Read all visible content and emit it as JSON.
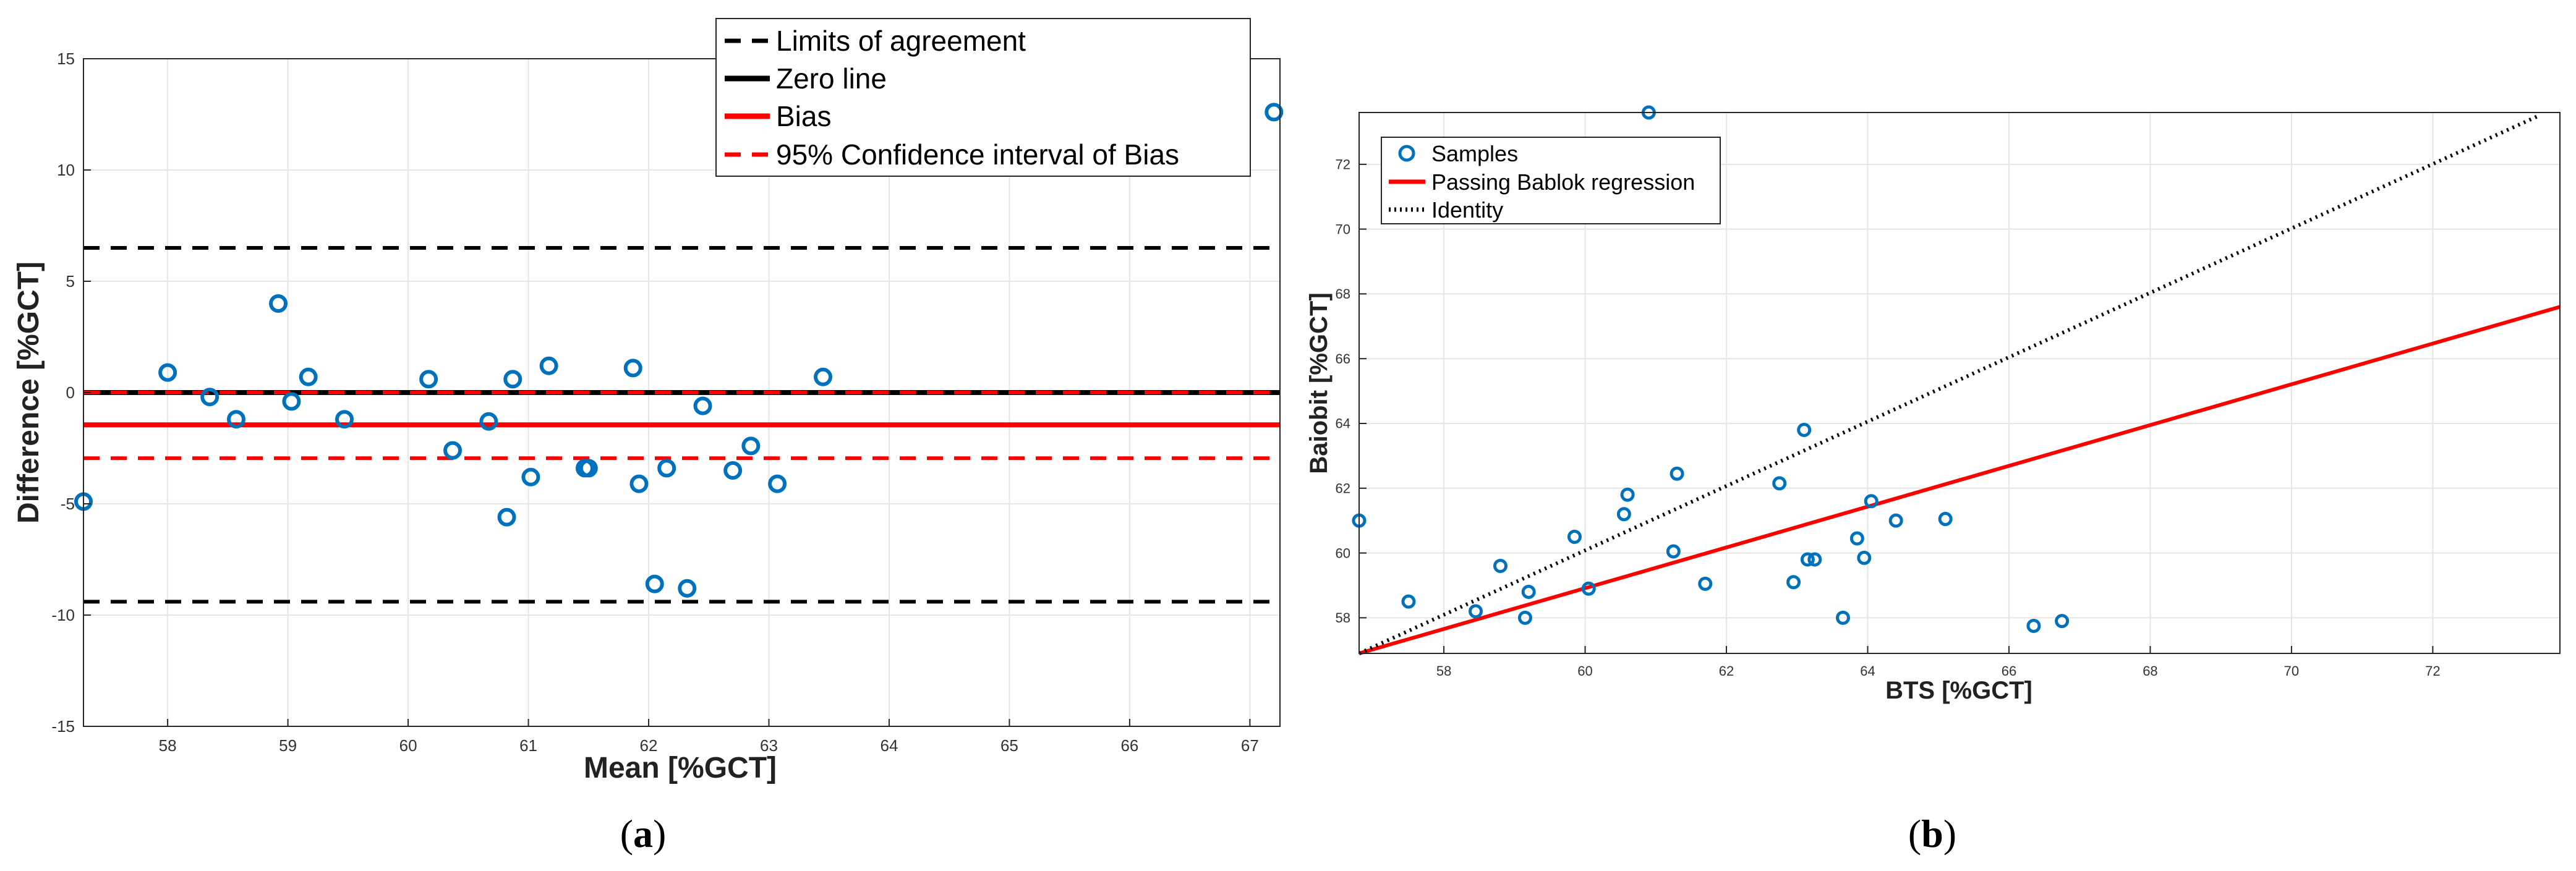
{
  "colors": {
    "marker": "#0072BD",
    "bias": "#FF0000",
    "black": "#000000",
    "grid": "#E6E6E6"
  },
  "chart_data": [
    {
      "id": "a",
      "panel_label_letter": "a",
      "type": "scatter",
      "xlabel": "Mean [%GCT]",
      "ylabel": "Difference [%GCT]",
      "xlim": [
        57.3,
        67.25
      ],
      "ylim": [
        -15,
        15
      ],
      "xticks": [
        58,
        59,
        60,
        61,
        62,
        63,
        64,
        65,
        66,
        67
      ],
      "yticks": [
        -15,
        -10,
        -5,
        0,
        5,
        10,
        15
      ],
      "grid": true,
      "legend_position": "top-right",
      "lines": [
        {
          "name": "Limits of agreement",
          "style": "dashed",
          "color": "#000000",
          "y": 6.5
        },
        {
          "name": "Limits of agreement",
          "style": "dashed",
          "color": "#000000",
          "y": -9.4
        },
        {
          "name": "Zero line",
          "style": "solid",
          "color": "#000000",
          "y": 0
        },
        {
          "name": "Bias",
          "style": "solid",
          "color": "#FF0000",
          "y": -1.45
        },
        {
          "name": "95% Confidence interval of Bias",
          "style": "dashed",
          "color": "#FF0000",
          "y": 0
        },
        {
          "name": "95% Confidence interval of Bias",
          "style": "dashed",
          "color": "#FF0000",
          "y": -2.95
        }
      ],
      "legend": [
        {
          "label": "Limits of agreement",
          "style": "dashed",
          "color": "#000000"
        },
        {
          "label": "Zero line",
          "style": "solid",
          "color": "#000000"
        },
        {
          "label": "Bias",
          "style": "solid",
          "color": "#FF0000"
        },
        {
          "label": "95% Confidence interval of Bias",
          "style": "dashed",
          "color": "#FF0000"
        }
      ],
      "points": [
        {
          "x": 57.3,
          "y": -4.9
        },
        {
          "x": 58.0,
          "y": 0.9
        },
        {
          "x": 58.35,
          "y": -0.2
        },
        {
          "x": 58.57,
          "y": -1.2
        },
        {
          "x": 58.92,
          "y": 4.0
        },
        {
          "x": 59.03,
          "y": -0.4
        },
        {
          "x": 59.17,
          "y": 0.7
        },
        {
          "x": 59.47,
          "y": -1.2
        },
        {
          "x": 60.17,
          "y": 0.6
        },
        {
          "x": 60.37,
          "y": -2.6
        },
        {
          "x": 60.67,
          "y": -1.3
        },
        {
          "x": 60.87,
          "y": 0.6
        },
        {
          "x": 60.82,
          "y": -5.6
        },
        {
          "x": 61.02,
          "y": -3.8
        },
        {
          "x": 61.17,
          "y": 1.2
        },
        {
          "x": 61.47,
          "y": -3.4
        },
        {
          "x": 61.5,
          "y": -3.4
        },
        {
          "x": 61.87,
          "y": 1.1
        },
        {
          "x": 61.92,
          "y": -4.1
        },
        {
          "x": 62.05,
          "y": -8.6
        },
        {
          "x": 62.15,
          "y": -3.4
        },
        {
          "x": 62.32,
          "y": -8.8
        },
        {
          "x": 62.45,
          "y": -0.6
        },
        {
          "x": 62.7,
          "y": -3.5
        },
        {
          "x": 62.85,
          "y": -2.4
        },
        {
          "x": 63.07,
          "y": -4.1
        },
        {
          "x": 63.45,
          "y": 0.7
        },
        {
          "x": 67.2,
          "y": 12.6
        }
      ]
    },
    {
      "id": "b",
      "panel_label_letter": "b",
      "type": "scatter",
      "xlabel": "BTS [%GCT]",
      "ylabel": "Baiobit [%GCT]",
      "xlim": [
        56.8,
        73.8
      ],
      "ylim": [
        56.9,
        73.6
      ],
      "xticks": [
        58,
        60,
        62,
        64,
        66,
        68,
        70,
        72
      ],
      "yticks": [
        58,
        60,
        62,
        64,
        66,
        68,
        70,
        72
      ],
      "grid": true,
      "legend_position": "top-left",
      "legend": [
        {
          "label": "Samples",
          "style": "marker",
          "color": "#0072BD"
        },
        {
          "label": "Passing Bablok regression",
          "style": "solid",
          "color": "#FF0000"
        },
        {
          "label": "Identity",
          "style": "dotted",
          "color": "#000000"
        }
      ],
      "lines": [
        {
          "name": "Passing Bablok regression",
          "style": "solid",
          "color": "#FF0000",
          "x1": 56.8,
          "y1": 56.9,
          "x2": 73.8,
          "y2": 67.6
        },
        {
          "name": "Identity",
          "style": "dotted",
          "color": "#000000",
          "x1": 56.8,
          "y1": 56.9,
          "x2": 73.5,
          "y2": 73.5
        }
      ],
      "points": [
        {
          "x": 56.8,
          "y": 61.0
        },
        {
          "x": 57.5,
          "y": 58.5
        },
        {
          "x": 58.45,
          "y": 58.2
        },
        {
          "x": 58.8,
          "y": 59.6
        },
        {
          "x": 59.15,
          "y": 58.0
        },
        {
          "x": 59.2,
          "y": 58.8
        },
        {
          "x": 59.85,
          "y": 60.5
        },
        {
          "x": 60.05,
          "y": 58.9
        },
        {
          "x": 60.55,
          "y": 61.2
        },
        {
          "x": 60.6,
          "y": 61.8
        },
        {
          "x": 60.9,
          "y": 73.6
        },
        {
          "x": 61.25,
          "y": 60.05
        },
        {
          "x": 61.3,
          "y": 62.45
        },
        {
          "x": 61.7,
          "y": 59.05
        },
        {
          "x": 62.75,
          "y": 62.15
        },
        {
          "x": 62.95,
          "y": 59.1
        },
        {
          "x": 63.1,
          "y": 63.8
        },
        {
          "x": 63.15,
          "y": 59.8
        },
        {
          "x": 63.25,
          "y": 59.8
        },
        {
          "x": 63.65,
          "y": 58.0
        },
        {
          "x": 63.85,
          "y": 60.45
        },
        {
          "x": 63.95,
          "y": 59.85
        },
        {
          "x": 64.05,
          "y": 61.6
        },
        {
          "x": 64.4,
          "y": 61.0
        },
        {
          "x": 65.1,
          "y": 61.05
        },
        {
          "x": 66.35,
          "y": 57.75
        },
        {
          "x": 66.75,
          "y": 57.9
        }
      ]
    }
  ]
}
